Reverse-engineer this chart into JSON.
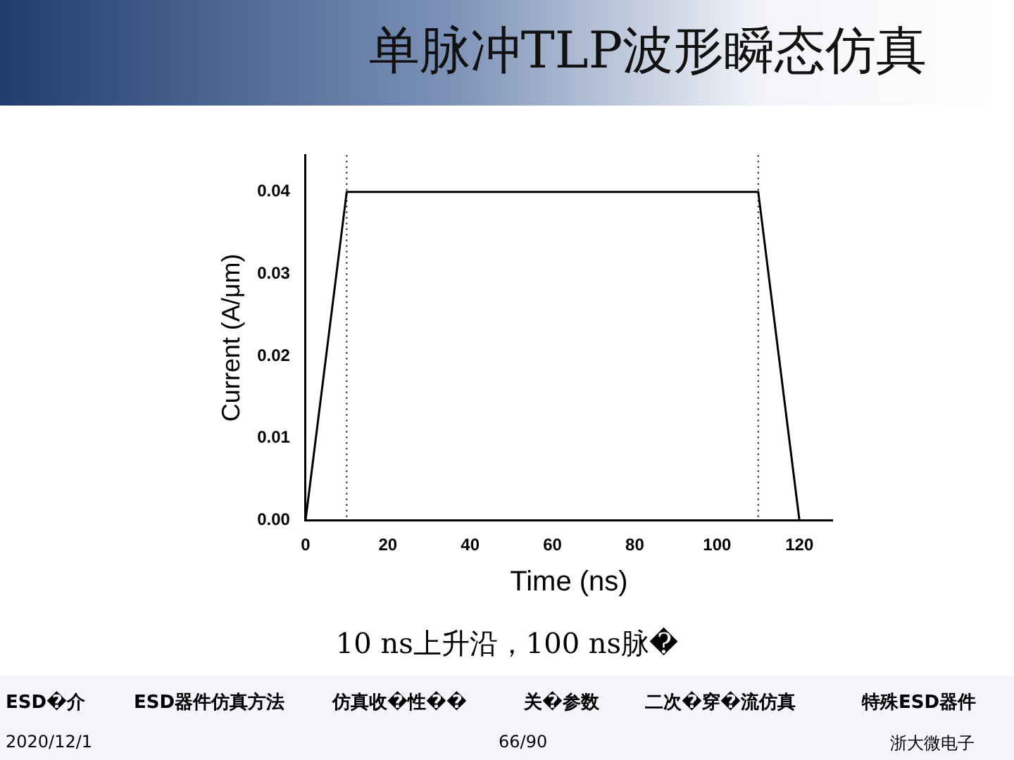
{
  "chart_data": {
    "type": "line",
    "title": "单脉冲TLP波形瞬态仿真",
    "xlabel": "Time (ns)",
    "ylabel": "Current (A/μm)",
    "x": [
      0,
      10,
      110,
      120
    ],
    "series": [
      {
        "color": "#000000",
        "values": [
          0,
          0.04,
          0.04,
          0
        ]
      }
    ],
    "xlim": [
      0,
      128
    ],
    "xticks": [
      0,
      20,
      40,
      60,
      80,
      100,
      120
    ],
    "ylim": [
      0,
      0.0445
    ],
    "yticks": [
      {
        "value": 0,
        "label": "0.00"
      },
      {
        "value": 0.01,
        "label": "0.01"
      },
      {
        "value": 0.02,
        "label": "0.02"
      },
      {
        "value": 0.03,
        "label": "0.03"
      },
      {
        "value": 0.04,
        "label": "0.04"
      }
    ],
    "ref_lines": [
      {
        "axis": "x",
        "value": 10,
        "line_style": "dotted",
        "color": "#000000"
      },
      {
        "axis": "x",
        "value": 110,
        "line_style": "dotted",
        "color": "#000000"
      }
    ],
    "grid": false,
    "legend": false,
    "marker": "none",
    "line_style": "solid",
    "annotations": [
      "10 ns上升沿，100 ns脉�",
      "ESD�介",
      "ESD器件仿真方法",
      "仿真收�性��",
      "关�参数",
      "二次�穿�流仿真",
      "特殊ESD器件",
      "2020/12/1",
      "66/90",
      "浙大微电子"
    ]
  }
}
